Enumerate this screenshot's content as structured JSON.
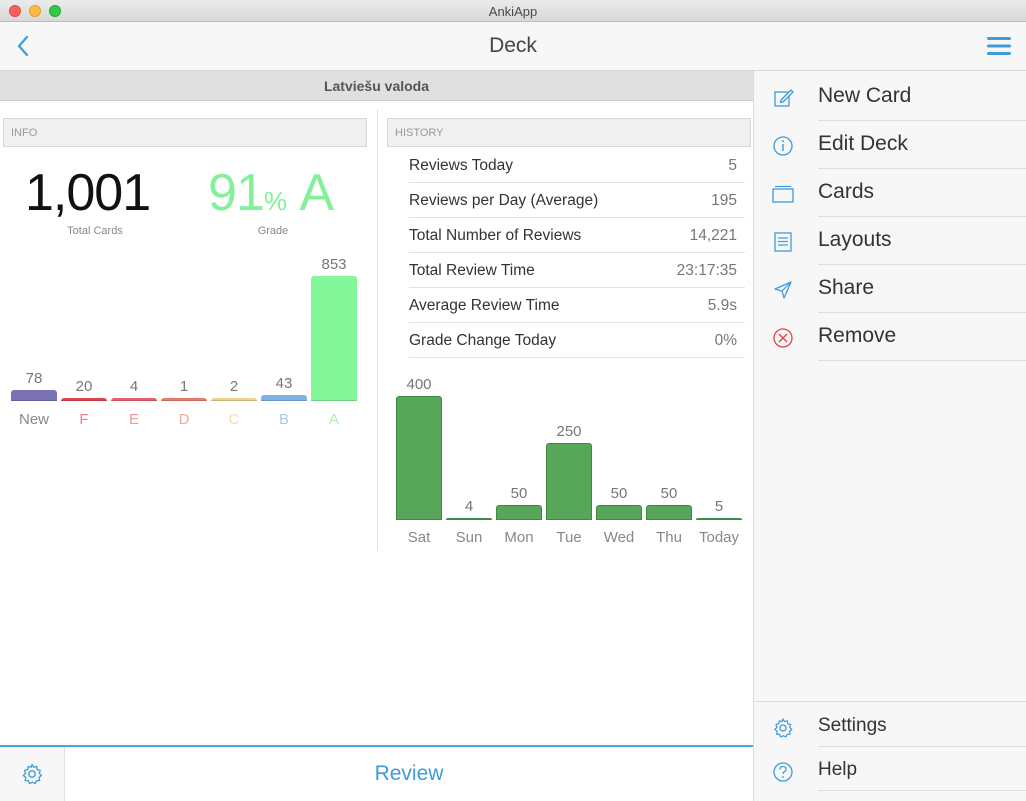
{
  "window": {
    "title": "AnkiApp"
  },
  "nav": {
    "title": "Deck",
    "back_icon": "chevron-left-icon",
    "menu_icon": "hamburger-icon"
  },
  "deck": {
    "name": "Latviešu valoda"
  },
  "info": {
    "section_label": "INFO",
    "total_cards": "1,001",
    "total_cards_caption": "Total Cards",
    "grade_value": "91",
    "grade_pct": "%",
    "grade_letter": "A",
    "grade_caption": "Grade"
  },
  "grade_chart": {
    "type": "bar",
    "categories": [
      "New",
      "F",
      "E",
      "D",
      "C",
      "B",
      "A"
    ],
    "values": [
      78,
      20,
      4,
      1,
      2,
      43,
      853
    ],
    "colors": [
      "#7a72b5",
      "#e0444d",
      "#e8606a",
      "#e87c6b",
      "#f2d08a",
      "#7fb3e8",
      "#84f79a"
    ],
    "label_colors": [
      "#888888",
      "#f08080",
      "#f09a9a",
      "#f0a8a0",
      "#f6dca8",
      "#a8c8ee",
      "#a8f0b4"
    ]
  },
  "history": {
    "section_label": "HISTORY",
    "rows": [
      {
        "label": "Reviews Today",
        "value": "5"
      },
      {
        "label": "Reviews per Day (Average)",
        "value": "195"
      },
      {
        "label": "Total Number of Reviews",
        "value": "14,221"
      },
      {
        "label": "Total Review Time",
        "value": "23:17:35"
      },
      {
        "label": "Average Review Time",
        "value": "5.9s"
      },
      {
        "label": "Grade Change Today",
        "value": "0%"
      }
    ]
  },
  "chart_data": {
    "type": "bar",
    "categories": [
      "Sat",
      "Sun",
      "Mon",
      "Tue",
      "Wed",
      "Thu",
      "Today"
    ],
    "values": [
      400,
      4,
      50,
      250,
      50,
      50,
      5
    ],
    "color": "#57a65a"
  },
  "bottom": {
    "review_label": "Review",
    "gear_icon": "gear-icon"
  },
  "menu": {
    "items": [
      {
        "label": "New Card",
        "icon": "compose-icon"
      },
      {
        "label": "Edit Deck",
        "icon": "info-icon"
      },
      {
        "label": "Cards",
        "icon": "cards-icon"
      },
      {
        "label": "Layouts",
        "icon": "layouts-icon"
      },
      {
        "label": "Share",
        "icon": "share-icon"
      },
      {
        "label": "Remove",
        "icon": "remove-icon"
      }
    ],
    "footer": [
      {
        "label": "Settings",
        "icon": "gear-icon"
      },
      {
        "label": "Help",
        "icon": "help-icon"
      }
    ]
  }
}
